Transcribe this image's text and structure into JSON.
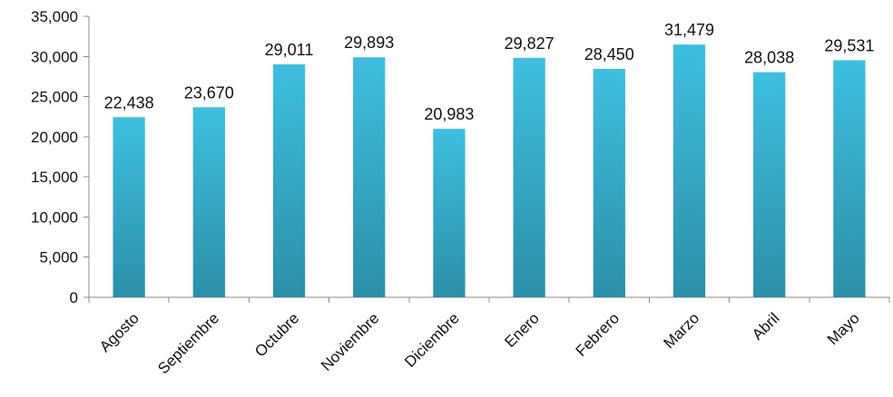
{
  "chart_data": {
    "type": "bar",
    "title": "",
    "xlabel": "",
    "ylabel": "",
    "categories": [
      "Agosto",
      "Septiembre",
      "Octubre",
      "Noviembre",
      "Diciembre",
      "Enero",
      "Febrero",
      "Marzo",
      "Abril",
      "Mayo"
    ],
    "values": [
      22438,
      23670,
      29011,
      29893,
      20983,
      29827,
      28450,
      31479,
      28038,
      29531
    ],
    "data_labels": [
      "22,438",
      "23,670",
      "29,011",
      "29,893",
      "20,983",
      "29,827",
      "28,450",
      "31,479",
      "28,038",
      "29,531"
    ],
    "ylim": [
      0,
      35000
    ],
    "y_ticks": [
      0,
      5000,
      10000,
      15000,
      20000,
      25000,
      30000,
      35000
    ],
    "y_tick_labels": [
      "0",
      "5,000",
      "10,000",
      "15,000",
      "20,000",
      "25,000",
      "30,000",
      "35,000"
    ],
    "grid": false,
    "legend": "none",
    "x_label_rotation_deg": -45,
    "bar_color_top": "#3dbfdf",
    "bar_color_bottom": "#2c8fa8",
    "axis_color": "#8c8c8c",
    "text_color": "#111111"
  }
}
